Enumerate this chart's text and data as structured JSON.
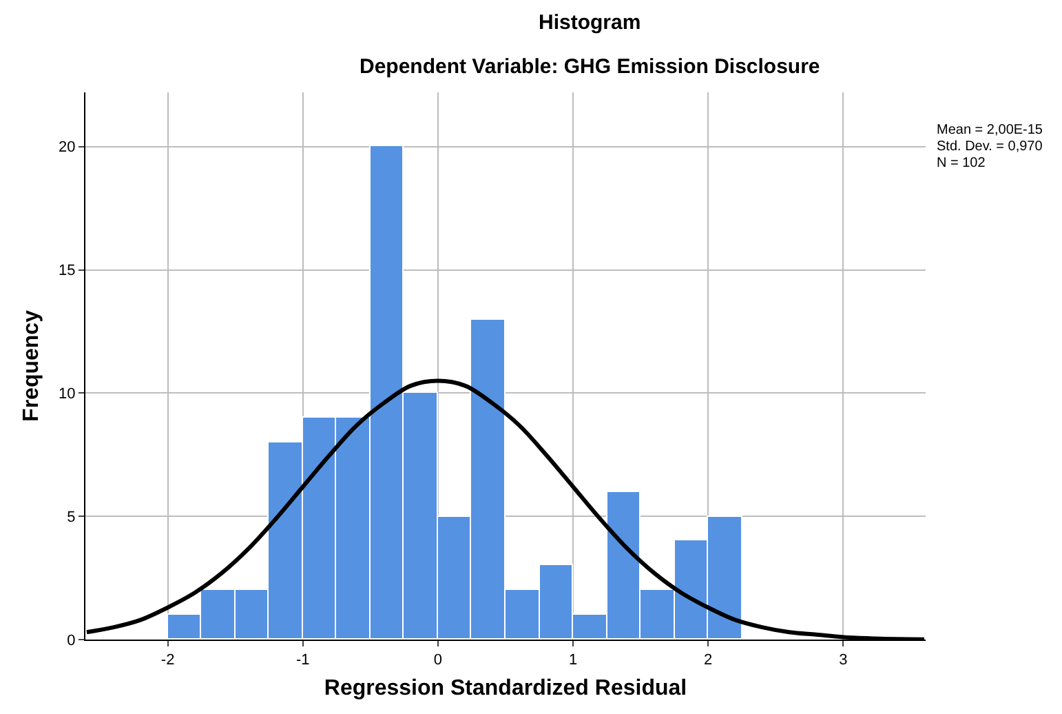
{
  "chart_data": {
    "type": "histogram",
    "title": "Histogram",
    "subtitle": "Dependent Variable: GHG Emission Disclosure",
    "xlabel": "Regression Standardized Residual",
    "ylabel": "Frequency",
    "bins": [
      -2.0,
      -1.75,
      -1.5,
      -1.25,
      -1.0,
      -0.75,
      -0.5,
      -0.25,
      0.0,
      0.25,
      0.5,
      0.75,
      1.0,
      1.25,
      1.5,
      1.75,
      2.0,
      2.25
    ],
    "values": [
      1,
      2,
      2,
      8,
      9,
      9,
      20,
      10,
      5,
      13,
      2,
      3,
      1,
      6,
      2,
      4,
      5
    ],
    "color": "#5592e2",
    "series": [
      {
        "type": "line",
        "color": "#000000",
        "x": [
          -2.6,
          -2.4,
          -2.2,
          -2.0,
          -1.8,
          -1.6,
          -1.4,
          -1.2,
          -1.0,
          -0.8,
          -0.6,
          -0.4,
          -0.2,
          0.0,
          0.2,
          0.4,
          0.6,
          0.8,
          1.0,
          1.2,
          1.4,
          1.6,
          1.8,
          2.0,
          2.2,
          2.4,
          2.6,
          2.8,
          3.0,
          3.2,
          3.4,
          3.6
        ],
        "values": [
          0.3,
          0.5,
          0.8,
          1.3,
          1.9,
          2.7,
          3.7,
          4.9,
          6.2,
          7.5,
          8.7,
          9.6,
          10.3,
          10.5,
          10.3,
          9.6,
          8.7,
          7.5,
          6.2,
          4.9,
          3.7,
          2.7,
          1.9,
          1.3,
          0.8,
          0.5,
          0.3,
          0.2,
          0.1,
          0.05,
          0.02,
          0.01
        ]
      }
    ],
    "annotations": [
      "Mean = 2,00E-15",
      "Std. Dev. = 0,970",
      "N = 102"
    ],
    "xlim": [
      -2.61,
      3.61
    ],
    "ylim": [
      0,
      22.2
    ],
    "xticks": [
      -2,
      -1,
      0,
      1,
      2,
      3
    ],
    "yticks": [
      0,
      5,
      10,
      15,
      20
    ],
    "grid": true
  }
}
